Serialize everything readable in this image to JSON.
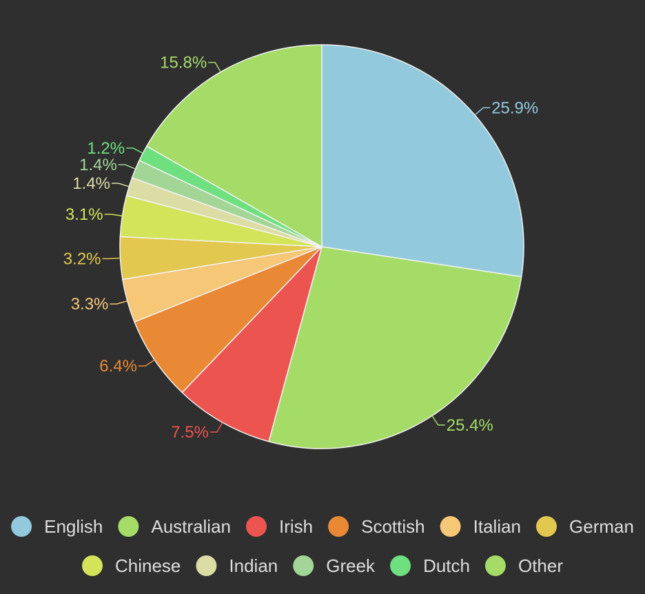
{
  "chart_data": {
    "type": "pie",
    "title": "",
    "start_angle_deg": 0,
    "direction": "clockwise",
    "legend_position": "bottom",
    "slices": [
      {
        "name": "English",
        "value": 25.9,
        "label": "25.9%",
        "color": "#92c9dc"
      },
      {
        "name": "Australian",
        "value": 25.4,
        "label": "25.4%",
        "color": "#a5dc68"
      },
      {
        "name": "Irish",
        "value": 7.5,
        "label": "7.5%",
        "color": "#ec5450"
      },
      {
        "name": "Scottish",
        "value": 6.4,
        "label": "6.4%",
        "color": "#e98935"
      },
      {
        "name": "Italian",
        "value": 3.3,
        "label": "3.3%",
        "color": "#f5c776"
      },
      {
        "name": "German",
        "value": 3.2,
        "label": "3.2%",
        "color": "#e2c84e"
      },
      {
        "name": "Chinese",
        "value": 3.1,
        "label": "3.1%",
        "color": "#d3e45a"
      },
      {
        "name": "Indian",
        "value": 1.4,
        "label": "1.4%",
        "color": "#dcdda4"
      },
      {
        "name": "Greek",
        "value": 1.4,
        "label": "1.4%",
        "color": "#a3d696"
      },
      {
        "name": "Dutch",
        "value": 1.2,
        "label": "1.2%",
        "color": "#6ee07f"
      },
      {
        "name": "Other",
        "value": 15.8,
        "label": "15.8%",
        "color": "#a5dc68"
      }
    ]
  },
  "colors": {
    "background": "#2f2f2f",
    "slice_border": "#f2f2f2",
    "legend_text": "#dddddd"
  }
}
